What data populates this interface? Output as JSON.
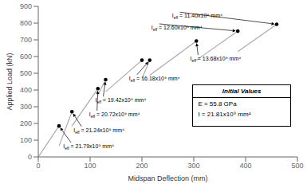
{
  "chart_data": {
    "type": "line",
    "xlabel": "Midspan Deflection (mm)",
    "ylabel": "Applied Load (kN)",
    "xlim": [
      0,
      500
    ],
    "ylim": [
      0,
      900
    ],
    "xticks": [
      0,
      100,
      200,
      300,
      400,
      500
    ],
    "yticks": [
      0,
      100,
      200,
      300,
      400,
      500,
      600,
      700,
      800,
      900
    ],
    "grid": false,
    "color": "#aaaaaa",
    "segments": [
      {
        "x": [
          0,
          40
        ],
        "y": [
          0,
          185
        ]
      },
      {
        "x": [
          40,
          65
        ],
        "y": [
          65,
          270
        ]
      },
      {
        "x": [
          65,
          115
        ],
        "y": [
          185,
          408
        ]
      },
      {
        "x": [
          115,
          130
        ],
        "y": [
          370,
          462
        ]
      },
      {
        "x": [
          130,
          200
        ],
        "y": [
          390,
          578
        ]
      },
      {
        "x": [
          200,
          215
        ],
        "y": [
          468,
          578
        ]
      },
      {
        "x": [
          215,
          305
        ],
        "y": [
          488,
          693
        ]
      },
      {
        "x": [
          305,
          385
        ],
        "y": [
          578,
          752
        ]
      },
      {
        "x": [
          385,
          460
        ],
        "y": [
          630,
          793
        ]
      }
    ],
    "dots": {
      "color": "#000000",
      "x": [
        40,
        65,
        115,
        130,
        200,
        215,
        305,
        385,
        460
      ],
      "y": [
        185,
        270,
        408,
        462,
        578,
        578,
        693,
        752,
        793
      ]
    },
    "annotations": [
      {
        "label": "Ieff = 21.79x10⁹ mm⁴",
        "x": 40,
        "y": 185,
        "text_x": 48,
        "text_y": 52
      },
      {
        "label": "Ieff = 21.24x10⁹ mm⁴",
        "x": 65,
        "y": 270,
        "text_x": 68,
        "text_y": 148
      },
      {
        "label": "Ieff = 20.72x10⁹ mm⁴",
        "x": 115,
        "y": 408,
        "text_x": 98,
        "text_y": 243
      },
      {
        "label": "Ieff = 19.42x10⁹ mm⁴",
        "x": 130,
        "y": 462,
        "text_x": 110,
        "text_y": 328
      },
      {
        "label": "Ieff = 16.18x10⁹ mm⁴",
        "x": 215,
        "y": 578,
        "text_x": 175,
        "text_y": 458
      },
      {
        "label": "Ieff = 13.68x10⁹ mm⁴",
        "x": 305,
        "y": 693,
        "text_x": 293,
        "text_y": 575
      },
      {
        "label": "Ieff = 12.60x10⁹ mm⁴",
        "x": 385,
        "y": 752,
        "text_x": 218,
        "text_y": 762
      },
      {
        "label": "Ieff = 11.40x10⁹ mm⁴",
        "x": 460,
        "y": 793,
        "text_x": 258,
        "text_y": 832
      }
    ],
    "inset": {
      "title": "Initial Values",
      "entries": [
        "E = 55.8 GPa",
        "I = 21.81x10⁹ mm⁴"
      ]
    }
  }
}
